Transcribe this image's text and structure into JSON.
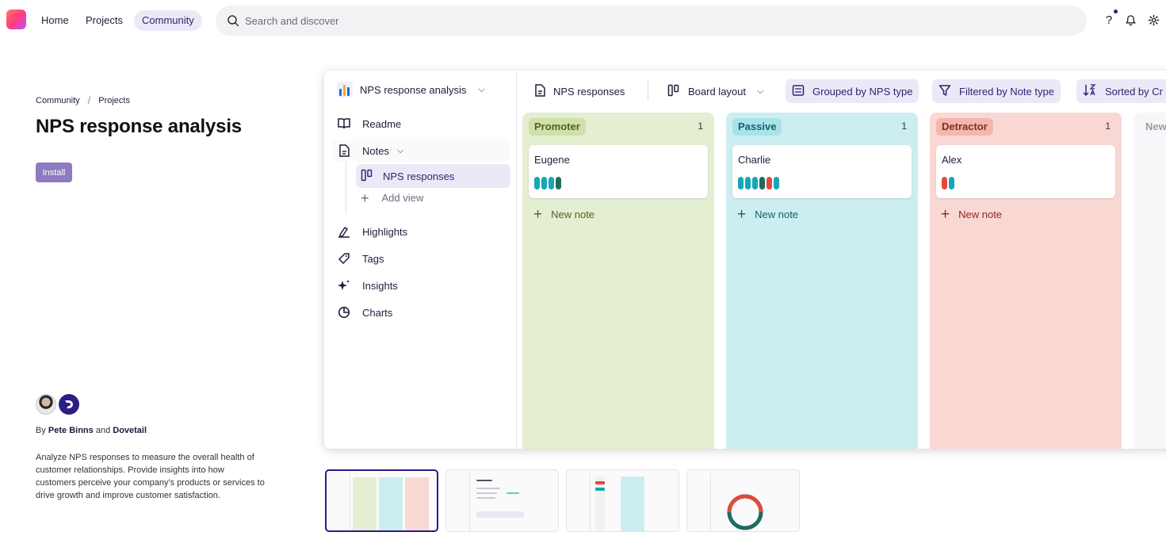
{
  "topbar": {
    "nav": [
      {
        "label": "Home"
      },
      {
        "label": "Projects"
      },
      {
        "label": "Community"
      }
    ],
    "search_placeholder": "Search and discover",
    "icons": [
      "help-icon",
      "bell-icon",
      "gear-icon"
    ]
  },
  "breadcrumb": [
    "Community",
    "Projects"
  ],
  "page_title": "NPS response analysis",
  "install_label": "Install",
  "byline": {
    "prefix": "By",
    "author1": "Pete Binns",
    "joiner": "and",
    "author2": "Dovetail"
  },
  "description": "Analyze NPS responses to measure the overall health of customer relationships. Provide insights into how customers perceive your company's products or services to drive growth and improve customer satisfaction.",
  "preview": {
    "project_name": "NPS response analysis",
    "sidebar": {
      "readme": "Readme",
      "notes": "Notes",
      "nps_responses": "NPS responses",
      "add_view": "Add view",
      "highlights": "Highlights",
      "tags": "Tags",
      "insights": "Insights",
      "charts": "Charts"
    },
    "toolbar": {
      "view": "NPS responses",
      "layout": "Board layout",
      "grouped": "Grouped by NPS type",
      "filtered": "Filtered by Note type",
      "sorted": "Sorted by Cr"
    },
    "columns": [
      {
        "name": "Promoter",
        "count": "1",
        "card": "Eugene",
        "badge_bg": "#cfe0a8",
        "badge_fg": "#4f6324",
        "text_color": "#4f6324",
        "pills": [
          "#16a6b6",
          "#16a6b6",
          "#16a6b6",
          "#1f6b62"
        ]
      },
      {
        "name": "Passive",
        "count": "1",
        "card": "Charlie",
        "badge_bg": "#a9e3ea",
        "badge_fg": "#16616b",
        "text_color": "#16616b",
        "pills": [
          "#16a6b6",
          "#16a6b6",
          "#16a6b6",
          "#1f6b62",
          "#e24a3b",
          "#16a6b6"
        ]
      },
      {
        "name": "Detractor",
        "count": "1",
        "card": "Alex",
        "badge_bg": "#f3b7ae",
        "badge_fg": "#8a2a1f",
        "text_color": "#8a2a1f",
        "pills": [
          "#e24a3b",
          "#16a6b6"
        ]
      }
    ],
    "new_note_label": "New note",
    "new_column_label": "New"
  }
}
